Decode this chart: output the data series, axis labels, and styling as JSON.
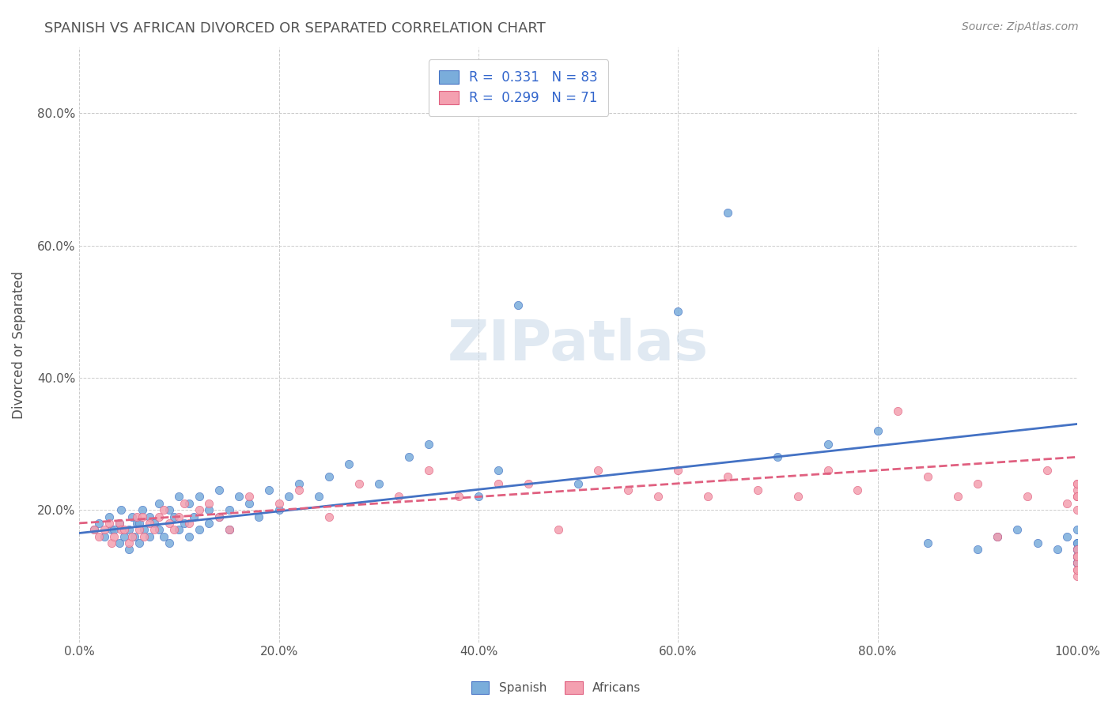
{
  "title": "SPANISH VS AFRICAN DIVORCED OR SEPARATED CORRELATION CHART",
  "source": "Source: ZipAtlas.com",
  "ylabel": "Divorced or Separated",
  "xlabel": "",
  "watermark": "ZIPatlas",
  "legend_r1": "R =  0.331   N = 83",
  "legend_r2": "R =  0.299   N = 71",
  "xlim": [
    0,
    100
  ],
  "ylim": [
    0,
    90
  ],
  "xticks": [
    0,
    20,
    40,
    60,
    80,
    100
  ],
  "yticks": [
    0,
    20,
    40,
    60,
    80
  ],
  "xtick_labels": [
    "0.0%",
    "20.0%",
    "40.0%",
    "60.0%",
    "80.0%",
    "100.0%"
  ],
  "ytick_labels": [
    "",
    "20.0%",
    "40.0%",
    "60.0%",
    "80.0%"
  ],
  "color_spanish": "#7aaddb",
  "color_african": "#f4a0b0",
  "color_trend_spanish": "#4472c4",
  "color_trend_african": "#e06080",
  "legend_color_text": "#3366cc",
  "title_color": "#555555",
  "spanish_x": [
    1.5,
    2,
    2.5,
    3,
    3.2,
    3.5,
    4,
    4,
    4.2,
    4.5,
    5,
    5,
    5.3,
    5.5,
    5.8,
    6,
    6,
    6.3,
    6.5,
    7,
    7,
    7.5,
    8,
    8,
    8.5,
    9,
    9,
    9.5,
    10,
    10,
    10.5,
    11,
    11,
    11.5,
    12,
    12,
    13,
    13,
    14,
    14,
    15,
    15,
    16,
    17,
    18,
    19,
    20,
    21,
    22,
    24,
    25,
    27,
    30,
    33,
    35,
    40,
    42,
    44,
    50,
    60,
    65,
    70,
    75,
    80,
    85,
    90,
    92,
    94,
    96,
    98,
    99,
    100,
    100,
    100,
    100,
    100,
    100,
    100,
    100,
    100,
    100,
    100,
    100
  ],
  "spanish_y": [
    17,
    18,
    16,
    19,
    17,
    17,
    15,
    18,
    20,
    16,
    14,
    17,
    19,
    16,
    18,
    15,
    18,
    20,
    17,
    16,
    19,
    18,
    17,
    21,
    16,
    15,
    20,
    19,
    17,
    22,
    18,
    16,
    21,
    19,
    17,
    22,
    20,
    18,
    19,
    23,
    20,
    17,
    22,
    21,
    19,
    23,
    20,
    22,
    24,
    22,
    25,
    27,
    24,
    28,
    30,
    22,
    26,
    51,
    24,
    50,
    65,
    28,
    30,
    32,
    15,
    14,
    16,
    17,
    15,
    14,
    16,
    17,
    15,
    13,
    12,
    14,
    13,
    12,
    14,
    15,
    13,
    12,
    14
  ],
  "african_x": [
    1.5,
    2,
    2.5,
    3,
    3.2,
    3.5,
    4,
    4.2,
    4.5,
    5,
    5.3,
    5.8,
    6,
    6.3,
    6.5,
    7,
    7.5,
    8,
    8.5,
    9,
    9.5,
    10,
    10.5,
    11,
    12,
    13,
    14,
    15,
    17,
    20,
    22,
    25,
    28,
    32,
    35,
    38,
    42,
    45,
    48,
    52,
    55,
    58,
    60,
    63,
    65,
    68,
    72,
    75,
    78,
    82,
    85,
    88,
    90,
    92,
    95,
    97,
    99,
    100,
    100,
    100,
    100,
    100,
    100,
    100,
    100,
    100,
    100,
    100,
    100,
    100,
    100
  ],
  "african_y": [
    17,
    16,
    17,
    18,
    15,
    16,
    18,
    17,
    17,
    15,
    16,
    19,
    17,
    19,
    16,
    18,
    17,
    19,
    20,
    18,
    17,
    19,
    21,
    18,
    20,
    21,
    19,
    17,
    22,
    21,
    23,
    19,
    24,
    22,
    26,
    22,
    24,
    24,
    17,
    26,
    23,
    22,
    26,
    22,
    25,
    23,
    22,
    26,
    23,
    35,
    25,
    22,
    24,
    16,
    22,
    26,
    21,
    22,
    23,
    24,
    22,
    24,
    11,
    20,
    22,
    12,
    13,
    10,
    14,
    11,
    13
  ],
  "trend_spanish_x0": 0,
  "trend_spanish_x1": 100,
  "trend_spanish_y0": 16.5,
  "trend_spanish_y1": 33,
  "trend_african_x0": 0,
  "trend_african_x1": 100,
  "trend_african_y0": 18,
  "trend_african_y1": 28
}
